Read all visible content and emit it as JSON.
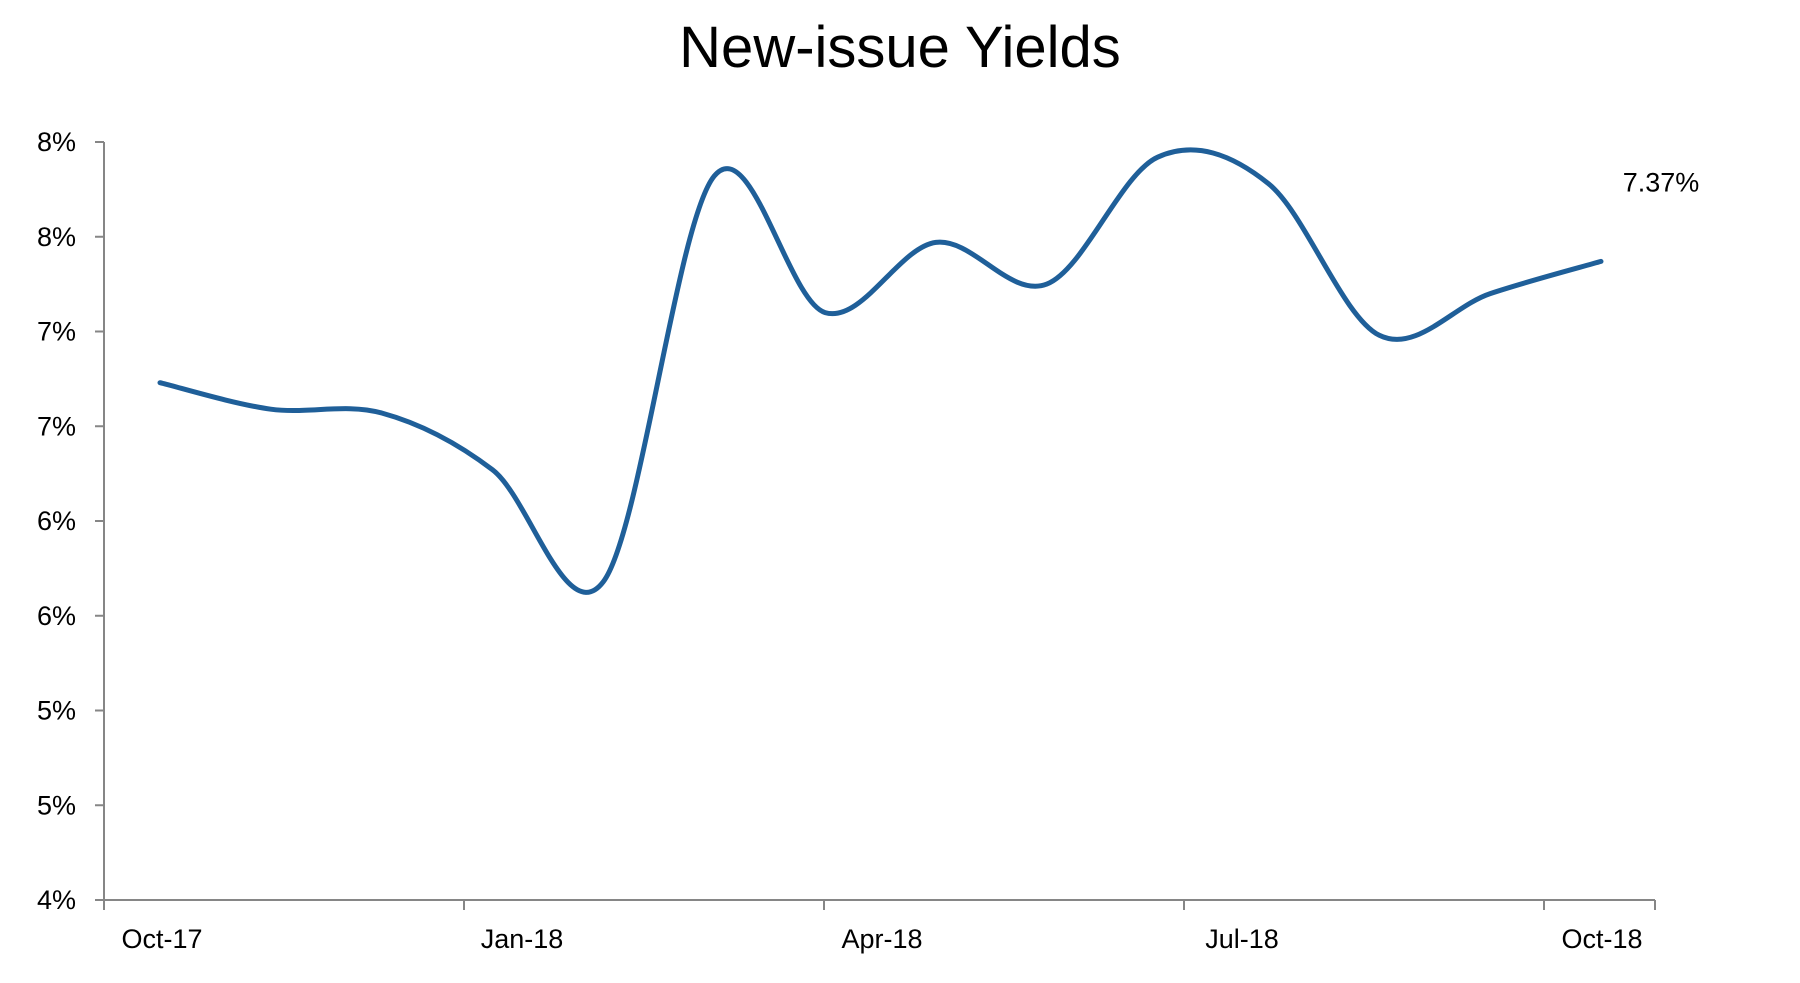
{
  "chart_data": {
    "type": "line",
    "title": "New-issue Yields",
    "xlabel": "",
    "ylabel": "",
    "x_tick_labels": [
      "Oct-17",
      "Jan-18",
      "Apr-18",
      "Jul-18",
      "Oct-18"
    ],
    "y_tick_labels": [
      "4%",
      "5%",
      "5%",
      "6%",
      "6%",
      "7%",
      "7%",
      "8%",
      "8%"
    ],
    "ylim": [
      4.0,
      8.0
    ],
    "grid": false,
    "legend": "none",
    "color": "#1f5f99",
    "x": [
      "Oct-17",
      "Nov-17",
      "Dec-17",
      "Dec-17",
      "Jan-18",
      "Feb-18",
      "Mar-18",
      "Apr-18",
      "May-18",
      "Jun-18",
      "Jul-18",
      "Aug-18",
      "Sep-18",
      "Oct-18"
    ],
    "values": [
      6.73,
      6.59,
      6.57,
      6.27,
      5.68,
      7.82,
      7.1,
      7.47,
      7.25,
      7.92,
      7.78,
      6.98,
      7.2,
      7.37
    ],
    "data_label": {
      "text": "7.37%",
      "series_index": 13
    }
  }
}
